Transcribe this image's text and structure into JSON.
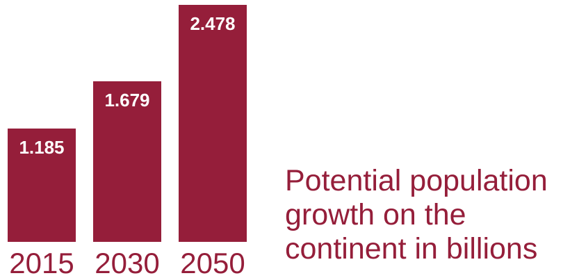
{
  "chart_data": {
    "type": "bar",
    "categories": [
      "2015",
      "2030",
      "2050"
    ],
    "values": [
      1.185,
      1.679,
      2.478
    ],
    "data_labels": [
      "1.185",
      "1.679",
      "2.478"
    ],
    "title_lines": [
      "Potential population",
      "growth on the",
      "continent in billions"
    ],
    "xlabel": "",
    "ylabel": "",
    "ylim": [
      0,
      2.478
    ],
    "grid": false,
    "legend": "none",
    "bar_color": "#951e3a",
    "label_color": "#ffffff",
    "tick_color": "#951e3a"
  }
}
